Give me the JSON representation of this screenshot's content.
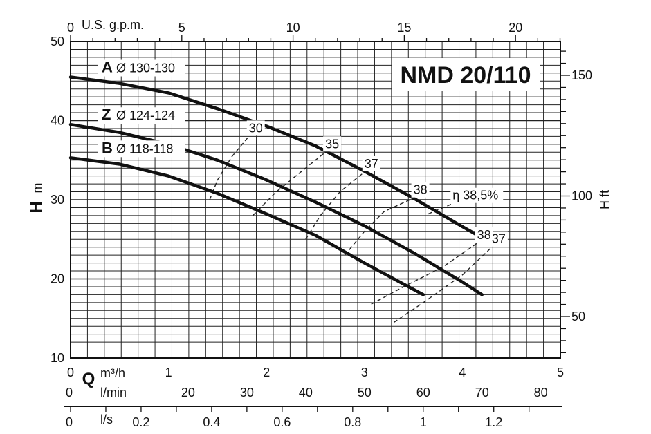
{
  "chart_data": {
    "type": "line",
    "title": "NMD 20/110",
    "x_primary": {
      "label": "Q",
      "unit": "m³/h",
      "range": [
        0,
        5
      ],
      "ticks": [
        "0",
        "1",
        "2",
        "3",
        "4",
        "5"
      ]
    },
    "x_secondary": [
      {
        "unit": "U.S. g.p.m.",
        "ticks": [
          "0",
          "5",
          "10",
          "15",
          "20"
        ]
      },
      {
        "unit": "l/min",
        "ticks": [
          "0",
          "20",
          "30",
          "40",
          "50",
          "60",
          "70",
          "80"
        ]
      },
      {
        "unit": "l/s",
        "ticks": [
          "0",
          "0.2",
          "0.4",
          "0.6",
          "0.8",
          "1",
          "1.2"
        ]
      }
    ],
    "y_left": {
      "label": "H",
      "unit": "m",
      "range": [
        10,
        50
      ],
      "ticks": [
        "10",
        "20",
        "30",
        "40",
        "50"
      ]
    },
    "y_right": {
      "label": "H ft",
      "ticks": [
        "50",
        "100",
        "150"
      ]
    },
    "series": [
      {
        "letter": "A",
        "name": "Ø 130-130",
        "x": [
          0,
          0.5,
          1.0,
          1.5,
          2.0,
          2.5,
          3.0,
          3.5,
          4.0,
          4.2
        ],
        "y": [
          45.5,
          44.7,
          43.5,
          41.5,
          39.3,
          36.8,
          33.6,
          30.2,
          26.6,
          25.2
        ]
      },
      {
        "letter": "Z",
        "name": "Ø 124-124",
        "x": [
          0,
          0.5,
          1.0,
          1.5,
          2.0,
          2.5,
          3.0,
          3.5,
          4.0,
          4.2
        ],
        "y": [
          39.5,
          38.5,
          37.0,
          35.0,
          32.5,
          29.7,
          26.7,
          23.3,
          19.6,
          18.0
        ]
      },
      {
        "letter": "B",
        "name": "Ø 118-118",
        "x": [
          0,
          0.5,
          1.0,
          1.5,
          2.0,
          2.5,
          3.0,
          3.3,
          3.6
        ],
        "y": [
          35.3,
          34.5,
          33.0,
          30.8,
          28.2,
          25.5,
          22.0,
          20.0,
          18.0
        ]
      }
    ],
    "efficiency_curves": [
      {
        "label": "30",
        "x": [
          1.42,
          1.5,
          1.65,
          1.82
        ],
        "y": [
          30.0,
          32.5,
          35.5,
          38.0
        ]
      },
      {
        "label": "35",
        "x": [
          1.86,
          2.1,
          2.4,
          2.6
        ],
        "y": [
          28.0,
          31.0,
          34.0,
          36.0
        ]
      },
      {
        "label": "37",
        "x": [
          2.4,
          2.55,
          2.75,
          3.0
        ],
        "y": [
          25.0,
          28.0,
          31.0,
          33.5
        ]
      },
      {
        "label": "38",
        "x": [
          2.8,
          3.0,
          3.2,
          3.5
        ],
        "y": [
          23.0,
          26.0,
          28.5,
          30.2
        ]
      },
      {
        "label": "η 38,5%",
        "x": [
          3.65,
          3.9
        ],
        "y": [
          28.2,
          29.5
        ]
      },
      {
        "label": "38",
        "x": [
          3.07,
          3.4,
          3.8,
          4.15
        ],
        "y": [
          16.8,
          19.0,
          21.5,
          24.5
        ]
      },
      {
        "label": "37",
        "x": [
          3.3,
          3.6,
          4.0,
          4.3
        ],
        "y": [
          14.5,
          17.0,
          20.5,
          24.0
        ]
      }
    ],
    "grid": true
  }
}
